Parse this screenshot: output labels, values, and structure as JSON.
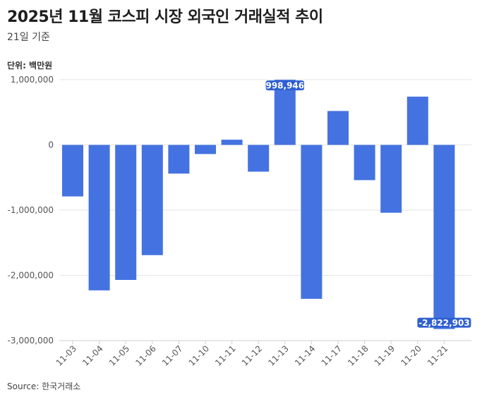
{
  "title": "2025년 11월 코스피 시장 외국인 거래실적 추이",
  "subtitle": "21일 기준",
  "unit_label": "단위: 백만원",
  "source": "Source: 한국거래소",
  "colors": {
    "bar": "#4472e0",
    "label_bg": "#2f5fd0",
    "grid": "#e6e6e6"
  },
  "chart_data": {
    "type": "bar",
    "title": "2025년 11월 코스피 시장 외국인 거래실적 추이",
    "subtitle": "21일 기준",
    "xlabel": "",
    "ylabel": "단위: 백만원",
    "categories": [
      "11-03",
      "11-04",
      "11-05",
      "11-06",
      "11-07",
      "11-10",
      "11-11",
      "11-12",
      "11-13",
      "11-14",
      "11-17",
      "11-18",
      "11-19",
      "11-20",
      "11-21"
    ],
    "values": [
      -790000,
      -2230000,
      -2070000,
      -1690000,
      -440000,
      -140000,
      80000,
      -410000,
      998946,
      -2360000,
      520000,
      -540000,
      -1040000,
      740000,
      -2822903
    ],
    "ylim": [
      -3000000,
      1000000
    ],
    "yticks": [
      1000000,
      0,
      -1000000,
      -2000000,
      -3000000
    ],
    "ytick_labels": [
      "1,000,000",
      "0",
      "-1,000,000",
      "-2,000,000",
      "-3,000,000"
    ],
    "data_labels": [
      {
        "index": 8,
        "text": "998,946"
      },
      {
        "index": 14,
        "text": "-2,822,903"
      }
    ],
    "grid": true,
    "legend": "none"
  }
}
